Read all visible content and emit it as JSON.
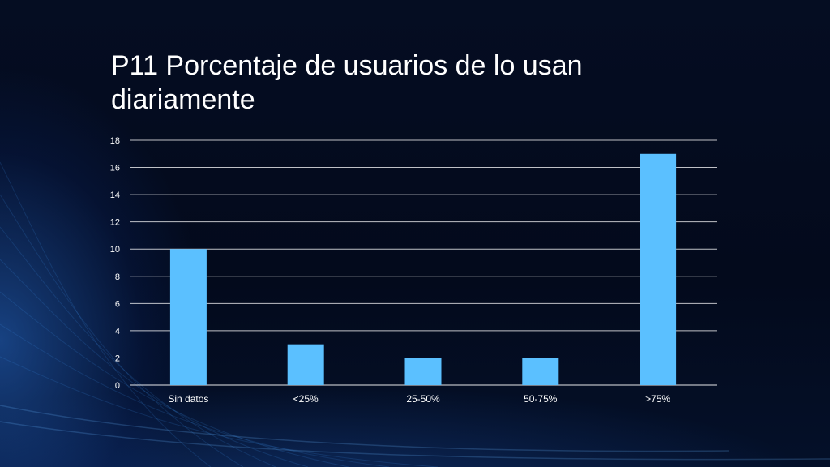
{
  "slide": {
    "title": "P11 Porcentaje de usuarios de lo usan diariamente"
  },
  "colors": {
    "background": "#030a1c",
    "bar": "#5bc0ff",
    "gridline": "#ffffff",
    "text": "#ffffff"
  },
  "chart_data": {
    "type": "bar",
    "title": "P11 Porcentaje de usuarios de lo usan diariamente",
    "categories": [
      "Sin datos",
      "<25%",
      "25-50%",
      "50-75%",
      ">75%"
    ],
    "values": [
      10,
      3,
      2,
      2,
      17
    ],
    "yticks": [
      0,
      2,
      4,
      6,
      8,
      10,
      12,
      14,
      16,
      18
    ],
    "ylim": [
      0,
      18
    ],
    "grid": true,
    "legend": "none"
  }
}
